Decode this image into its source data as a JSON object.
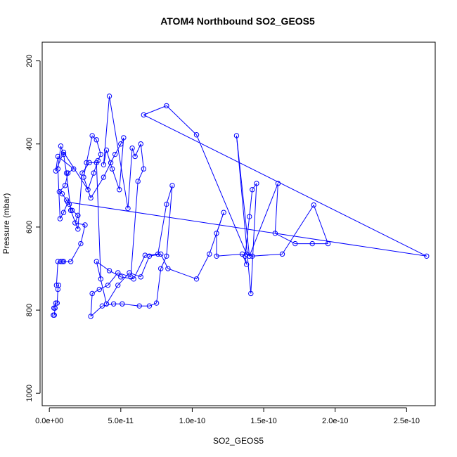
{
  "chart_data": {
    "type": "line",
    "title": "ATOM4 Northbound SO2_GEOS5",
    "xlabel": "SO2_GEOS5",
    "ylabel": "Pressure (mbar)",
    "xlim": [
      -5e-12,
      2.7e-10
    ],
    "ylim": [
      1030,
      155
    ],
    "y_reversed": true,
    "x_ticks": [
      0,
      5e-11,
      1e-10,
      1.5e-10,
      2e-10,
      2.5e-10
    ],
    "x_tick_labels": [
      "0.0e+00",
      "5.0e-11",
      "1.0e-10",
      "1.5e-10",
      "2.0e-10",
      "2.5e-10"
    ],
    "y_ticks": [
      200,
      400,
      600,
      800,
      1000
    ],
    "y_tick_labels": [
      "200",
      "400",
      "600",
      "800",
      "1000"
    ],
    "series_color": "#0000ff",
    "marker": "open-circle",
    "grid": false,
    "legend": "none",
    "x": [
      2.8e-12,
      3.5e-12,
      4e-12,
      3.2e-12,
      4.5e-12,
      5.5e-12,
      6e-12,
      6.5e-12,
      5e-12,
      6e-12,
      8e-12,
      9e-12,
      1e-11,
      1.5e-11,
      2.2e-11,
      2.5e-11,
      1.8e-11,
      2e-11,
      1.6e-11,
      1.4e-11,
      1.2e-11,
      9e-12,
      7e-12,
      1.1e-11,
      1.3e-11,
      1.7e-11,
      6e-12,
      4.5e-12,
      1e-11,
      2.7e-11,
      3.1e-11,
      3.4e-11,
      3.6e-11,
      3.3e-11,
      3e-11,
      2.6e-11,
      2.4e-11,
      2.9e-11,
      3.8e-11,
      4.3e-11,
      4.6e-11,
      5e-11,
      5.2e-11,
      4.9e-11,
      4.4e-11,
      4e-11,
      3.8e-11,
      4.2e-11,
      5.5e-11,
      5.8e-11,
      6e-11,
      6.4e-11,
      6.6e-11,
      6.2e-11,
      5.7e-11,
      4.8e-11,
      4.1e-11,
      3.5e-11,
      3e-11,
      2.9e-11,
      3.7e-11,
      4.5e-11,
      5.1e-11,
      6.3e-11,
      7e-11,
      7.5e-11,
      7.8e-11,
      8.2e-11,
      8.6e-11,
      8.2e-11,
      7.6e-11,
      6.7e-11,
      5.9e-11,
      5e-11,
      4.2e-11,
      3.3e-11,
      4e-11,
      4.8e-11,
      5.6e-11,
      6.4e-11,
      7e-11,
      7.8e-11,
      8.3e-11,
      1.03e-10,
      1.12e-10,
      1.22e-10,
      1.17e-10,
      1.17e-10,
      1.35e-10,
      1.38e-10,
      1.37e-10,
      1.4e-10,
      1.42e-10,
      1.45e-10,
      1.41e-10,
      1.31e-10,
      1.4e-10,
      1.6e-10,
      1.58e-10,
      1.72e-10,
      1.84e-10,
      1.95e-10,
      1.85e-10,
      1.63e-10,
      1.42e-10,
      1.38e-10,
      1.03e-10,
      8.2e-11,
      6.6e-11,
      2.64e-10,
      1.3e-11,
      1e-11,
      7.5e-12,
      6e-12,
      8e-12,
      1e-11,
      1.2e-11,
      1.5e-11,
      2e-11,
      2.3e-11,
      2.8e-11,
      3.3e-11,
      3.6e-11
    ],
    "y": [
      812,
      812,
      795,
      795,
      783,
      783,
      750,
      740,
      740,
      683,
      683,
      683,
      683,
      683,
      640,
      595,
      590,
      572,
      560,
      545,
      535,
      520,
      515,
      500,
      470,
      460,
      430,
      465,
      420,
      510,
      470,
      440,
      425,
      390,
      380,
      445,
      480,
      530,
      480,
      445,
      425,
      400,
      385,
      510,
      460,
      415,
      450,
      285,
      555,
      410,
      430,
      400,
      460,
      490,
      720,
      710,
      740,
      750,
      760,
      815,
      790,
      785,
      785,
      790,
      790,
      783,
      700,
      670,
      500,
      545,
      665,
      668,
      725,
      720,
      705,
      683,
      785,
      740,
      710,
      720,
      670,
      665,
      700,
      725,
      665,
      565,
      615,
      670,
      665,
      690,
      670,
      575,
      510,
      495,
      760,
      380,
      670,
      495,
      615,
      640,
      640,
      640,
      547,
      665,
      670,
      665,
      378,
      308,
      330,
      670,
      540,
      565,
      580,
      460,
      405,
      425,
      470,
      560,
      605,
      470,
      445,
      445,
      725
    ],
    "line_path_note": ""
  }
}
